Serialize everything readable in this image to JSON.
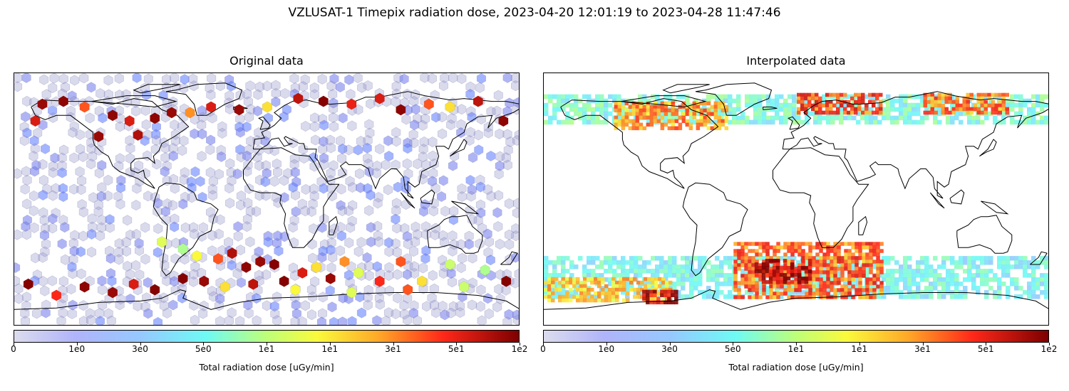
{
  "figure": {
    "suptitle": "VZLUSAT-1 Timepix radiation dose, 2023-04-20 12:01:19 to 2023-04-28 11:47:46"
  },
  "chart_data": [
    {
      "type": "heatmap",
      "subtype": "hexbin-on-map",
      "title": "Original data",
      "projection": "PlateCarree",
      "lon_range": [
        -180,
        180
      ],
      "lat_range": [
        -90,
        90
      ],
      "colorbar_label": "Total radiation dose [uGy/min]",
      "colorbar_ticks": [
        "0",
        "1e0",
        "3e0",
        "5e0",
        "1e1",
        "1e1",
        "3e1",
        "5e1",
        "1e2"
      ],
      "colormap": "jet (white-lavender start)",
      "points": [
        {
          "lon": -160,
          "lat": 68,
          "dose": 85
        },
        {
          "lon": -145,
          "lat": 70,
          "dose": 90
        },
        {
          "lon": -130,
          "lat": 66,
          "dose": 40
        },
        {
          "lon": -110,
          "lat": 60,
          "dose": 90
        },
        {
          "lon": -98,
          "lat": 56,
          "dose": 60
        },
        {
          "lon": -92,
          "lat": 46,
          "dose": 75
        },
        {
          "lon": -80,
          "lat": 58,
          "dose": 90
        },
        {
          "lon": -68,
          "lat": 62,
          "dose": 85
        },
        {
          "lon": -55,
          "lat": 62,
          "dose": 30
        },
        {
          "lon": -40,
          "lat": 66,
          "dose": 60
        },
        {
          "lon": -20,
          "lat": 64,
          "dose": 85
        },
        {
          "lon": 0,
          "lat": 66,
          "dose": 18
        },
        {
          "lon": 22,
          "lat": 72,
          "dose": 70
        },
        {
          "lon": 40,
          "lat": 70,
          "dose": 95
        },
        {
          "lon": 60,
          "lat": 68,
          "dose": 55
        },
        {
          "lon": 80,
          "lat": 72,
          "dose": 60
        },
        {
          "lon": 95,
          "lat": 64,
          "dose": 90
        },
        {
          "lon": 115,
          "lat": 68,
          "dose": 40
        },
        {
          "lon": 130,
          "lat": 66,
          "dose": 18
        },
        {
          "lon": 150,
          "lat": 70,
          "dose": 70
        },
        {
          "lon": 168,
          "lat": 56,
          "dose": 90
        },
        {
          "lon": -120,
          "lat": 45,
          "dose": 85
        },
        {
          "lon": -165,
          "lat": 56,
          "dose": 60
        },
        {
          "lon": -75,
          "lat": -30,
          "dose": 12
        },
        {
          "lon": -60,
          "lat": -35,
          "dose": 8
        },
        {
          "lon": -50,
          "lat": -40,
          "dose": 15
        },
        {
          "lon": -35,
          "lat": -42,
          "dose": 40
        },
        {
          "lon": -25,
          "lat": -38,
          "dose": 75
        },
        {
          "lon": -15,
          "lat": -48,
          "dose": 90
        },
        {
          "lon": -5,
          "lat": -44,
          "dose": 85
        },
        {
          "lon": 5,
          "lat": -46,
          "dose": 95
        },
        {
          "lon": 12,
          "lat": -58,
          "dose": 95
        },
        {
          "lon": 25,
          "lat": -52,
          "dose": 60
        },
        {
          "lon": 35,
          "lat": -48,
          "dose": 18
        },
        {
          "lon": 45,
          "lat": -56,
          "dose": 85
        },
        {
          "lon": 55,
          "lat": -44,
          "dose": 30
        },
        {
          "lon": 65,
          "lat": -52,
          "dose": 12
        },
        {
          "lon": 80,
          "lat": -58,
          "dose": 50
        },
        {
          "lon": 95,
          "lat": -44,
          "dose": 40
        },
        {
          "lon": 110,
          "lat": -58,
          "dose": 18
        },
        {
          "lon": 130,
          "lat": -46,
          "dose": 10
        },
        {
          "lon": 155,
          "lat": -50,
          "dose": 8
        },
        {
          "lon": 170,
          "lat": -58,
          "dose": 95
        },
        {
          "lon": -170,
          "lat": -60,
          "dose": 95
        },
        {
          "lon": -150,
          "lat": -68,
          "dose": 50
        },
        {
          "lon": -130,
          "lat": -62,
          "dose": 90
        },
        {
          "lon": -110,
          "lat": -66,
          "dose": 85
        },
        {
          "lon": -95,
          "lat": -60,
          "dose": 60
        },
        {
          "lon": -80,
          "lat": -64,
          "dose": 95
        },
        {
          "lon": -60,
          "lat": -56,
          "dose": 95
        },
        {
          "lon": -45,
          "lat": -58,
          "dose": 85
        },
        {
          "lon": -30,
          "lat": -62,
          "dose": 18
        },
        {
          "lon": -10,
          "lat": -60,
          "dose": 70
        },
        {
          "lon": 20,
          "lat": -64,
          "dose": 15
        },
        {
          "lon": 60,
          "lat": -66,
          "dose": 12
        },
        {
          "lon": 100,
          "lat": -64,
          "dose": 40
        },
        {
          "lon": 140,
          "lat": -62,
          "dose": 10
        }
      ]
    },
    {
      "type": "heatmap",
      "subtype": "interpolated-map",
      "title": "Interpolated data",
      "projection": "PlateCarree",
      "lon_range": [
        -180,
        180
      ],
      "lat_range": [
        -90,
        90
      ],
      "colorbar_label": "Total radiation dose [uGy/min]",
      "colorbar_ticks": [
        "0",
        "1e0",
        "3e0",
        "5e0",
        "1e1",
        "1e1",
        "3e1",
        "5e1",
        "1e2"
      ],
      "colormap": "jet (white-lavender start)",
      "regions": [
        {
          "lon_min": -180,
          "lon_max": 180,
          "lat_min": 55,
          "lat_max": 75,
          "dose": 6
        },
        {
          "lon_min": -130,
          "lon_max": -50,
          "lat_min": 52,
          "lat_max": 70,
          "dose": 35
        },
        {
          "lon_min": 0,
          "lon_max": 60,
          "lat_min": 62,
          "lat_max": 76,
          "dose": 50
        },
        {
          "lon_min": 90,
          "lon_max": 150,
          "lat_min": 62,
          "lat_max": 76,
          "dose": 40
        },
        {
          "lon_min": -180,
          "lon_max": 180,
          "lat_min": -70,
          "lat_max": -40,
          "dose": 5
        },
        {
          "lon_min": -45,
          "lon_max": 60,
          "lat_min": -68,
          "lat_max": -30,
          "dose": 45
        },
        {
          "lon_min": -30,
          "lon_max": 10,
          "lat_min": -58,
          "lat_max": -42,
          "dose": 95
        },
        {
          "lon_min": -180,
          "lon_max": -90,
          "lat_min": -72,
          "lat_max": -55,
          "dose": 25
        },
        {
          "lon_min": -110,
          "lon_max": -85,
          "lat_min": -72,
          "lat_max": -64,
          "dose": 90
        }
      ]
    }
  ]
}
